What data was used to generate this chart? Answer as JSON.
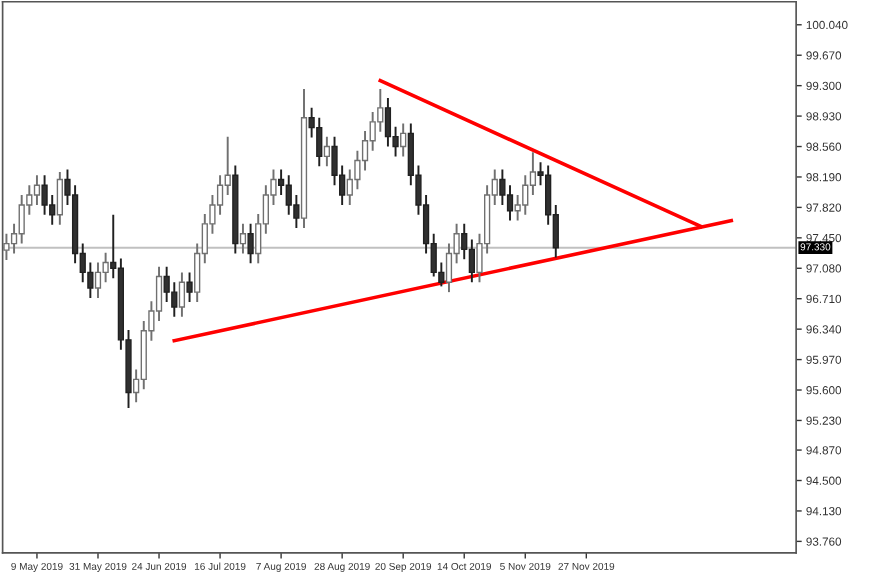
{
  "chart_data": {
    "type": "candlestick",
    "categories": [
      null,
      null,
      null,
      null,
      "9 May 2019",
      null,
      null,
      null,
      null,
      null,
      null,
      null,
      "31 May 2019",
      null,
      null,
      null,
      null,
      null,
      null,
      null,
      "24 Jun 2019",
      null,
      null,
      null,
      null,
      null,
      null,
      null,
      "16 Jul 2019",
      null,
      null,
      null,
      null,
      null,
      null,
      null,
      "7 Aug 2019",
      null,
      null,
      null,
      null,
      null,
      null,
      null,
      "28 Aug 2019",
      null,
      null,
      null,
      null,
      null,
      null,
      null,
      "20 Sep 2019",
      null,
      null,
      null,
      null,
      null,
      null,
      null,
      "14 Oct 2019",
      null,
      null,
      null,
      null,
      null,
      null,
      null,
      "5 Nov 2019",
      null,
      null,
      null,
      null,
      null,
      null,
      null,
      "27 Nov 2019",
      null,
      null,
      null,
      null,
      null,
      null,
      null,
      null,
      null,
      null,
      null,
      null,
      null,
      null,
      null,
      null,
      null,
      null,
      null,
      null,
      null,
      null,
      null,
      null,
      null,
      null,
      null
    ],
    "ohlc": [
      [
        97.3,
        97.5,
        97.18,
        97.38
      ],
      [
        97.38,
        97.62,
        97.26,
        97.5
      ],
      [
        97.5,
        97.97,
        97.38,
        97.85
      ],
      [
        97.85,
        98.09,
        97.73,
        97.97
      ],
      [
        97.97,
        98.21,
        97.85,
        98.09
      ],
      [
        98.09,
        98.21,
        97.73,
        97.85
      ],
      [
        97.85,
        97.97,
        97.61,
        97.73
      ],
      [
        97.73,
        98.25,
        97.61,
        98.16
      ],
      [
        98.16,
        98.28,
        97.85,
        97.97
      ],
      [
        97.97,
        98.09,
        97.14,
        97.26
      ],
      [
        97.26,
        97.38,
        96.91,
        97.03
      ],
      [
        97.03,
        97.15,
        96.72,
        96.84
      ],
      [
        96.84,
        97.15,
        96.72,
        97.03
      ],
      [
        97.03,
        97.27,
        96.91,
        97.15
      ],
      [
        97.15,
        97.73,
        96.96,
        97.08
      ],
      [
        97.08,
        97.2,
        96.09,
        96.21
      ],
      [
        96.21,
        96.33,
        95.38,
        95.57
      ],
      [
        95.57,
        95.85,
        95.45,
        95.73
      ],
      [
        95.73,
        96.44,
        95.61,
        96.32
      ],
      [
        96.32,
        96.68,
        96.2,
        96.56
      ],
      [
        96.56,
        97.1,
        96.44,
        96.98
      ],
      [
        96.98,
        97.1,
        96.67,
        96.79
      ],
      [
        96.79,
        96.91,
        96.49,
        96.61
      ],
      [
        96.61,
        97.03,
        96.49,
        96.91
      ],
      [
        96.91,
        97.03,
        96.67,
        96.79
      ],
      [
        96.79,
        97.38,
        96.67,
        97.26
      ],
      [
        97.26,
        97.74,
        97.14,
        97.62
      ],
      [
        97.62,
        97.97,
        97.5,
        97.85
      ],
      [
        97.85,
        98.21,
        97.73,
        98.09
      ],
      [
        98.09,
        98.68,
        97.97,
        98.21
      ],
      [
        98.21,
        98.33,
        97.26,
        97.38
      ],
      [
        97.38,
        97.62,
        97.26,
        97.5
      ],
      [
        97.5,
        97.62,
        97.14,
        97.26
      ],
      [
        97.26,
        97.74,
        97.14,
        97.62
      ],
      [
        97.62,
        98.09,
        97.5,
        97.97
      ],
      [
        97.97,
        98.28,
        97.85,
        98.16
      ],
      [
        98.16,
        98.28,
        97.97,
        98.09
      ],
      [
        98.09,
        98.21,
        97.73,
        97.85
      ],
      [
        97.85,
        97.97,
        97.57,
        97.69
      ],
      [
        97.69,
        99.26,
        97.57,
        98.91
      ],
      [
        98.91,
        99.03,
        98.67,
        98.79
      ],
      [
        98.79,
        98.91,
        98.32,
        98.44
      ],
      [
        98.44,
        98.68,
        98.32,
        98.56
      ],
      [
        98.56,
        98.68,
        98.09,
        98.21
      ],
      [
        98.21,
        98.33,
        97.85,
        97.97
      ],
      [
        97.97,
        98.28,
        97.85,
        98.16
      ],
      [
        98.16,
        98.51,
        98.04,
        98.39
      ],
      [
        98.39,
        98.75,
        98.27,
        98.63
      ],
      [
        98.63,
        98.98,
        98.51,
        98.86
      ],
      [
        98.86,
        99.26,
        98.74,
        99.03
      ],
      [
        99.03,
        99.15,
        98.56,
        98.68
      ],
      [
        98.68,
        98.8,
        98.44,
        98.56
      ],
      [
        98.56,
        98.84,
        98.44,
        98.72
      ],
      [
        98.72,
        98.84,
        98.09,
        98.21
      ],
      [
        98.21,
        98.33,
        97.73,
        97.85
      ],
      [
        97.85,
        97.97,
        97.26,
        97.38
      ],
      [
        97.38,
        97.5,
        96.98,
        97.03
      ],
      [
        97.03,
        97.15,
        96.86,
        96.91
      ],
      [
        96.91,
        97.38,
        96.79,
        97.26
      ],
      [
        97.26,
        97.62,
        97.14,
        97.5
      ],
      [
        97.5,
        97.62,
        97.19,
        97.31
      ],
      [
        97.31,
        97.43,
        96.91,
        97.03
      ],
      [
        97.03,
        97.5,
        96.91,
        97.38
      ],
      [
        97.38,
        98.09,
        97.26,
        97.97
      ],
      [
        97.97,
        98.28,
        97.85,
        98.16
      ],
      [
        98.16,
        98.28,
        97.85,
        97.97
      ],
      [
        97.97,
        98.09,
        97.66,
        97.78
      ],
      [
        97.78,
        97.97,
        97.66,
        97.85
      ],
      [
        97.85,
        98.21,
        97.73,
        98.09
      ],
      [
        98.09,
        98.49,
        97.97,
        98.25
      ],
      [
        98.25,
        98.37,
        98.09,
        98.21
      ],
      [
        98.21,
        98.33,
        97.61,
        97.73
      ],
      [
        97.73,
        97.85,
        97.21,
        97.33
      ],
      null,
      null,
      null,
      null,
      null,
      null,
      null,
      null,
      null,
      null,
      null,
      null,
      null,
      null,
      null,
      null,
      null,
      null,
      null,
      null,
      null,
      null,
      null,
      null,
      null,
      null,
      null,
      null,
      null,
      null,
      null
    ],
    "series": [
      {
        "type": "line",
        "color": "#ff0000",
        "values": [
          null,
          null,
          null,
          null,
          null,
          null,
          null,
          null,
          null,
          null,
          null,
          null,
          null,
          null,
          null,
          null,
          null,
          null,
          null,
          null,
          null,
          null,
          null,
          null,
          null,
          null,
          null,
          null,
          null,
          null,
          null,
          null,
          null,
          null,
          null,
          null,
          null,
          null,
          null,
          null,
          null,
          null,
          null,
          null,
          null,
          null,
          null,
          null,
          null,
          99.36,
          null,
          null,
          null,
          null,
          null,
          null,
          null,
          null,
          null,
          null,
          null,
          null,
          null,
          null,
          null,
          null,
          null,
          null,
          null,
          null,
          null,
          null,
          null,
          null,
          null,
          null,
          null,
          null,
          null,
          null,
          null,
          null,
          null,
          null,
          null,
          null,
          null,
          null,
          null,
          null,
          null,
          97.59,
          null,
          null,
          null,
          null,
          null,
          null,
          null,
          null,
          null,
          null,
          null,
          null
        ]
      },
      {
        "type": "line",
        "color": "#ff0000",
        "values": [
          null,
          null,
          null,
          null,
          null,
          null,
          null,
          null,
          null,
          null,
          null,
          null,
          null,
          null,
          null,
          null,
          null,
          null,
          null,
          null,
          null,
          null,
          96.2,
          null,
          null,
          null,
          null,
          null,
          null,
          null,
          null,
          null,
          null,
          null,
          null,
          null,
          null,
          null,
          null,
          null,
          null,
          null,
          null,
          null,
          null,
          null,
          null,
          null,
          null,
          null,
          null,
          null,
          null,
          null,
          null,
          null,
          null,
          null,
          null,
          null,
          null,
          null,
          null,
          null,
          null,
          null,
          null,
          null,
          null,
          null,
          null,
          null,
          null,
          null,
          null,
          null,
          null,
          null,
          null,
          null,
          null,
          null,
          null,
          null,
          null,
          null,
          null,
          null,
          null,
          null,
          null,
          null,
          null,
          null,
          null,
          97.66,
          null,
          null,
          null,
          null,
          null,
          null,
          null,
          null
        ]
      }
    ],
    "ylim": [
      93.62,
      100.32
    ],
    "yticks": [
      {
        "value": 100.04,
        "label": "100.040"
      },
      {
        "value": 99.67,
        "label": "99.670"
      },
      {
        "value": 99.3,
        "label": "99.300"
      },
      {
        "value": 98.93,
        "label": "98.930"
      },
      {
        "value": 98.56,
        "label": "98.560"
      },
      {
        "value": 98.19,
        "label": "98.190"
      },
      {
        "value": 97.82,
        "label": "97.820"
      },
      {
        "value": 97.45,
        "label": "97.450"
      },
      {
        "value": 97.08,
        "label": "97.080"
      },
      {
        "value": 96.71,
        "label": "96.710"
      },
      {
        "value": 96.34,
        "label": "96.340"
      },
      {
        "value": 95.97,
        "label": "95.970"
      },
      {
        "value": 95.6,
        "label": "95.600"
      },
      {
        "value": 95.23,
        "label": "95.230"
      },
      {
        "value": 94.87,
        "label": "94.870"
      },
      {
        "value": 94.5,
        "label": "94.500"
      },
      {
        "value": 94.13,
        "label": "94.130"
      },
      {
        "value": 93.76,
        "label": "93.760"
      }
    ],
    "ref_lines": [
      {
        "axis": "y",
        "value": 97.33,
        "label": "97.330",
        "color": "#c0c0c0"
      }
    ]
  }
}
